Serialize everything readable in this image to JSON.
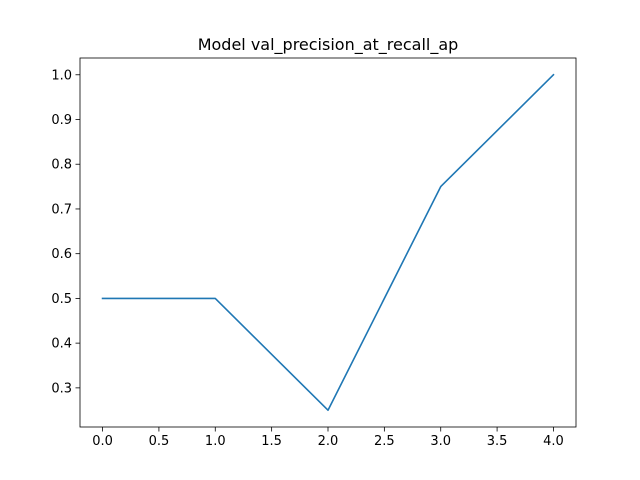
{
  "chart_data": {
    "type": "line",
    "title": "Model val_precision_at_recall_ap",
    "xlabel": "",
    "ylabel": "",
    "xlim": [
      -0.2,
      4.2
    ],
    "ylim": [
      0.2125,
      1.0375
    ],
    "x_ticks": [
      "0.0",
      "0.5",
      "1.0",
      "1.5",
      "2.0",
      "2.5",
      "3.0",
      "3.5",
      "4.0"
    ],
    "y_ticks": [
      "0.3",
      "0.4",
      "0.5",
      "0.6",
      "0.7",
      "0.8",
      "0.9",
      "1.0"
    ],
    "grid": false,
    "series": [
      {
        "color": "#1f77b4",
        "x": [
          0,
          1,
          2,
          3,
          4
        ],
        "values": [
          0.5,
          0.5,
          0.25,
          0.75,
          1.0
        ]
      }
    ]
  }
}
